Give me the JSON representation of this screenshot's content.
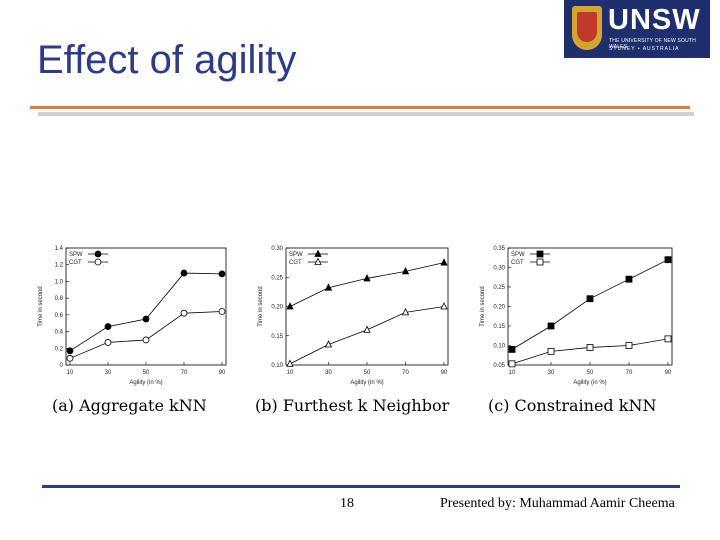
{
  "slide": {
    "title": "Effect of agility",
    "page_number": "18",
    "presenter": "Presented by: Muhammad Aamir Cheema"
  },
  "logo": {
    "wordmark": "UNSW",
    "line1": "THE UNIVERSITY OF NEW SOUTH WALES",
    "line2": "SYDNEY • AUSTRALIA"
  },
  "colors": {
    "title": "#2a3a8c",
    "accent_rule": "#e07b39",
    "bottom_rule": "#2a3a8c",
    "logo_bg": "#1f2f6e"
  },
  "chart_data": [
    {
      "type": "line",
      "caption": "(a) Aggregate kNN",
      "xlabel": "Agility (in %)",
      "ylabel": "Time in second",
      "x": [
        10,
        30,
        50,
        70,
        90
      ],
      "xticks": [
        "10",
        "30",
        "50",
        "70",
        "90"
      ],
      "yticks": [
        "0",
        "0.2",
        "0.4",
        "0.6",
        "0.8",
        "1.0",
        "1.2",
        "1.4"
      ],
      "ylim": [
        0,
        1.4
      ],
      "legend_position": "top-left",
      "series": [
        {
          "name": "SPW",
          "marker": "filled-circle",
          "values": [
            0.17,
            0.46,
            0.55,
            1.1,
            1.09
          ]
        },
        {
          "name": "CGT",
          "marker": "open-circle",
          "values": [
            0.08,
            0.27,
            0.3,
            0.62,
            0.64
          ]
        }
      ]
    },
    {
      "type": "line",
      "caption": "(b) Furthest k Neighbor",
      "xlabel": "Agility (in %)",
      "ylabel": "Time in second",
      "x": [
        10,
        30,
        50,
        70,
        90
      ],
      "xticks": [
        "10",
        "30",
        "50",
        "70",
        "90"
      ],
      "yticks": [
        "0.10",
        "0.15",
        "0.20",
        "0.25",
        "0.30"
      ],
      "ylim": [
        0.1,
        0.3
      ],
      "legend_position": "top-left",
      "series": [
        {
          "name": "SPW",
          "marker": "filled-triangle",
          "values": [
            0.2,
            0.232,
            0.248,
            0.26,
            0.275
          ]
        },
        {
          "name": "CGT",
          "marker": "open-triangle",
          "values": [
            0.102,
            0.135,
            0.16,
            0.19,
            0.2
          ]
        }
      ]
    },
    {
      "type": "line",
      "caption": "(c) Constrained kNN",
      "xlabel": "Agility (in %)",
      "ylabel": "Time in second",
      "x": [
        10,
        30,
        50,
        70,
        90
      ],
      "xticks": [
        "10",
        "30",
        "50",
        "70",
        "90"
      ],
      "yticks": [
        "0.05",
        "0.10",
        "0.15",
        "0.20",
        "0.25",
        "0.30",
        "0.35"
      ],
      "ylim": [
        0.05,
        0.35
      ],
      "legend_position": "top-left",
      "series": [
        {
          "name": "SPW",
          "marker": "filled-square",
          "values": [
            0.09,
            0.15,
            0.22,
            0.27,
            0.32
          ]
        },
        {
          "name": "CGT",
          "marker": "open-square",
          "values": [
            0.053,
            0.085,
            0.095,
            0.1,
            0.117
          ]
        }
      ]
    }
  ]
}
